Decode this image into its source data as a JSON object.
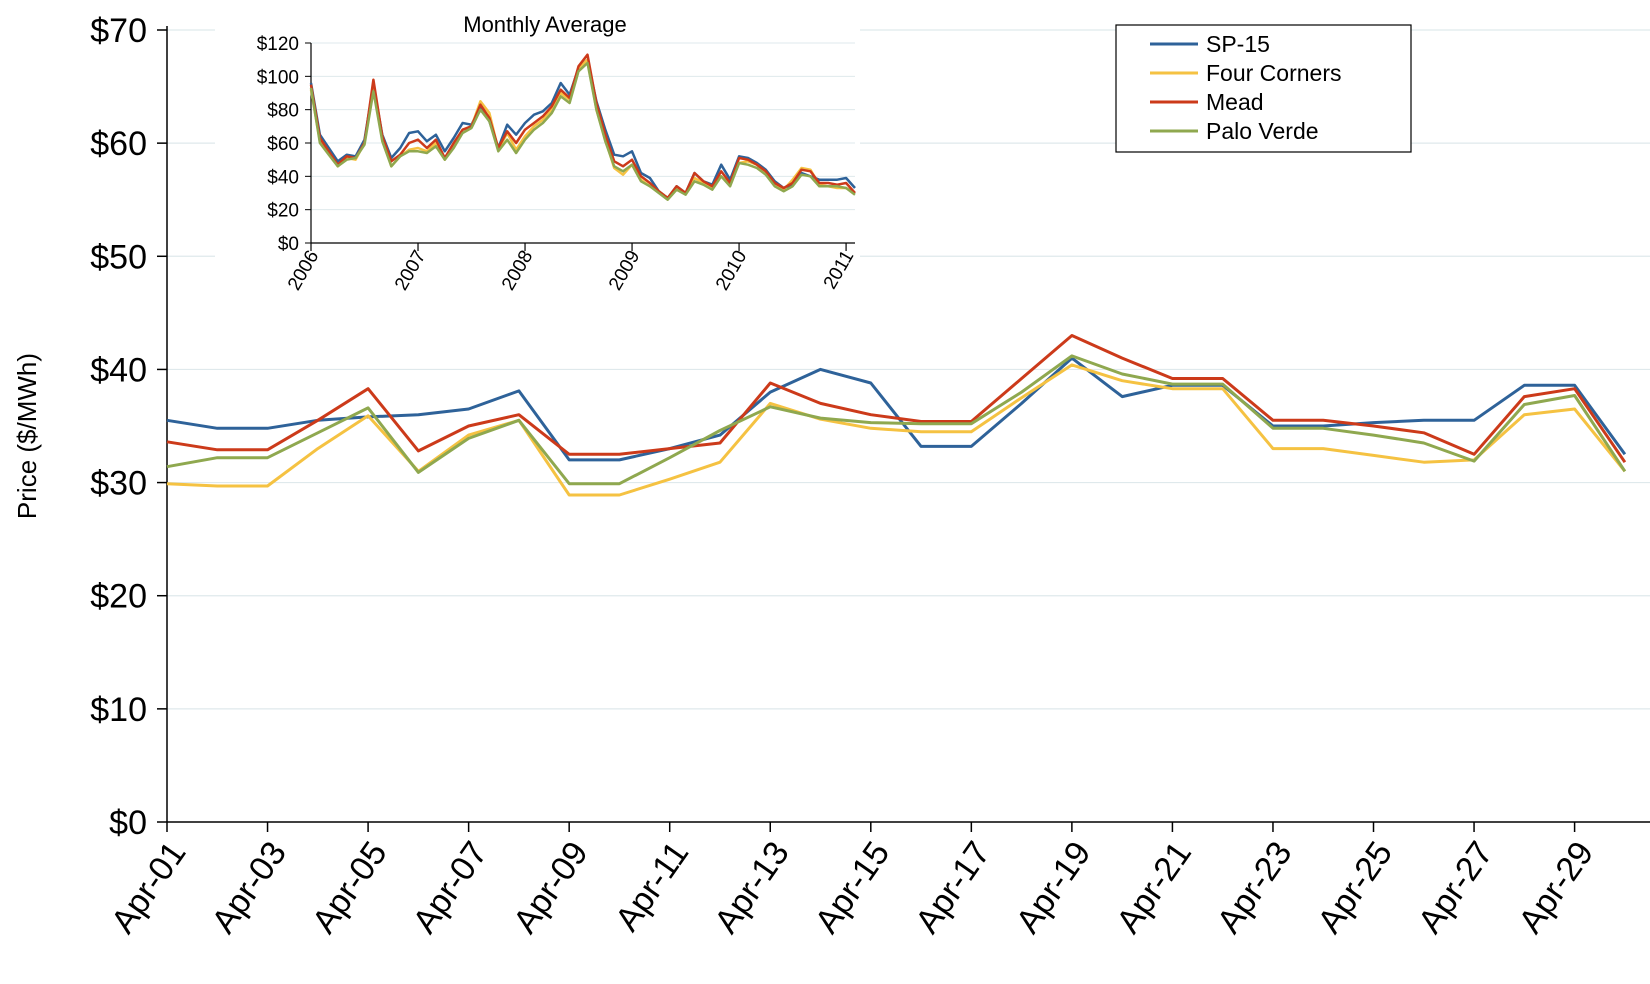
{
  "chart_data": [
    {
      "type": "line",
      "title": "",
      "xlabel": "",
      "ylabel": "Price ($/MWh)",
      "ylim": [
        0,
        70
      ],
      "y_ticks": [
        "$0",
        "$10",
        "$20",
        "$30",
        "$40",
        "$50",
        "$60",
        "$70"
      ],
      "x_tick_labels": [
        "Apr-01",
        "Apr-03",
        "Apr-05",
        "Apr-07",
        "Apr-09",
        "Apr-11",
        "Apr-13",
        "Apr-15",
        "Apr-17",
        "Apr-19",
        "Apr-21",
        "Apr-23",
        "Apr-25",
        "Apr-27",
        "Apr-29"
      ],
      "x": [
        1,
        2,
        3,
        4,
        5,
        6,
        7,
        8,
        9,
        10,
        11,
        12,
        13,
        14,
        15,
        16,
        17,
        18,
        19,
        20,
        21,
        22,
        23,
        24,
        25,
        26,
        27,
        28,
        29,
        30
      ],
      "series": [
        {
          "name": "SP-15",
          "color": "#2e6299",
          "values": [
            35.5,
            34.8,
            34.8,
            35.5,
            35.8,
            36.0,
            36.5,
            38.1,
            32.0,
            32.0,
            33.0,
            34.2,
            38.0,
            40.0,
            38.8,
            33.2,
            33.2,
            37.0,
            41.0,
            37.6,
            38.6,
            38.6,
            35.0,
            35.0,
            35.3,
            35.5,
            35.5,
            38.6,
            38.6,
            32.5
          ]
        },
        {
          "name": "Four Corners",
          "color": "#f5c242",
          "values": [
            29.9,
            29.7,
            29.7,
            33.0,
            35.9,
            31.0,
            34.2,
            35.5,
            28.9,
            28.9,
            30.3,
            31.8,
            37.0,
            35.6,
            34.8,
            34.5,
            34.5,
            37.5,
            40.4,
            39.0,
            38.3,
            38.3,
            33.0,
            33.0,
            32.4,
            31.8,
            32.0,
            36.0,
            36.5,
            31.0
          ]
        },
        {
          "name": "Mead",
          "color": "#cc3a1a",
          "values": [
            33.6,
            32.9,
            32.9,
            35.5,
            38.3,
            32.8,
            35.0,
            36.0,
            32.5,
            32.5,
            33.0,
            33.5,
            38.8,
            37.0,
            36.0,
            35.4,
            35.4,
            39.2,
            43.0,
            41.0,
            39.2,
            39.2,
            35.5,
            35.5,
            35.0,
            34.4,
            32.5,
            37.6,
            38.3,
            31.8
          ]
        },
        {
          "name": "Palo Verde",
          "color": "#8fa84f",
          "values": [
            31.4,
            32.2,
            32.2,
            34.4,
            36.6,
            30.9,
            33.9,
            35.5,
            29.9,
            29.9,
            32.2,
            34.6,
            36.7,
            35.7,
            35.3,
            35.2,
            35.2,
            38.0,
            41.2,
            39.6,
            38.7,
            38.7,
            34.8,
            34.8,
            34.2,
            33.5,
            31.9,
            36.9,
            37.7,
            31.0
          ]
        }
      ],
      "grid": true,
      "legend": "top-right"
    },
    {
      "type": "line",
      "title": "Monthly Average",
      "xlabel": "",
      "ylabel": "",
      "ylim": [
        0,
        120
      ],
      "y_ticks": [
        "$0",
        "$20",
        "$40",
        "$60",
        "$80",
        "$100",
        "$120"
      ],
      "x_tick_labels": [
        "2006",
        "2007",
        "2008",
        "2009",
        "2010",
        "2011"
      ],
      "x_start_year": 2006,
      "grid": true,
      "series": [
        {
          "name": "SP-15",
          "color": "#2e6299",
          "values": [
            96,
            65,
            57,
            49,
            53,
            52,
            62,
            95,
            65,
            51,
            57,
            66,
            67,
            61,
            65,
            55,
            63,
            72,
            71,
            82,
            73,
            57,
            71,
            65,
            72,
            77,
            79,
            84,
            96,
            89,
            105,
            110,
            85,
            68,
            53,
            52,
            55,
            42,
            39,
            31,
            27,
            34,
            30,
            42,
            37,
            35,
            47,
            38,
            52,
            51,
            48,
            44,
            37,
            33,
            35,
            42,
            40,
            38,
            38,
            38,
            39,
            33
          ]
        },
        {
          "name": "Four Corners",
          "color": "#f5c242",
          "values": [
            92,
            61,
            54,
            46,
            51,
            50,
            60,
            92,
            64,
            46,
            52,
            56,
            57,
            55,
            60,
            50,
            58,
            68,
            70,
            85,
            78,
            56,
            66,
            56,
            64,
            70,
            74,
            80,
            90,
            86,
            105,
            110,
            80,
            62,
            45,
            41,
            47,
            38,
            34,
            31,
            27,
            33,
            30,
            39,
            36,
            33,
            40,
            35,
            48,
            49,
            47,
            42,
            35,
            32,
            38,
            45,
            44,
            35,
            34,
            33,
            33,
            30
          ]
        },
        {
          "name": "Mead",
          "color": "#cc3a1a",
          "values": [
            95,
            63,
            55,
            47,
            52,
            51,
            60,
            98,
            64,
            49,
            53,
            60,
            62,
            57,
            62,
            51,
            60,
            68,
            70,
            83,
            75,
            57,
            67,
            60,
            68,
            72,
            76,
            82,
            92,
            87,
            106,
            113,
            84,
            65,
            49,
            46,
            50,
            40,
            36,
            31,
            27,
            34,
            30,
            42,
            37,
            34,
            43,
            36,
            51,
            50,
            47,
            43,
            36,
            33,
            36,
            44,
            43,
            36,
            36,
            35,
            36,
            30
          ]
        },
        {
          "name": "Palo Verde",
          "color": "#8fa84f",
          "values": [
            93,
            60,
            53,
            46,
            50,
            51,
            59,
            91,
            61,
            46,
            52,
            55,
            55,
            54,
            58,
            50,
            57,
            66,
            69,
            80,
            73,
            55,
            62,
            54,
            62,
            68,
            72,
            78,
            88,
            84,
            103,
            108,
            80,
            61,
            46,
            43,
            47,
            37,
            34,
            30,
            26,
            32,
            29,
            37,
            35,
            32,
            40,
            34,
            48,
            47,
            45,
            41,
            34,
            31,
            34,
            41,
            40,
            34,
            34,
            34,
            33,
            29
          ]
        }
      ]
    }
  ]
}
